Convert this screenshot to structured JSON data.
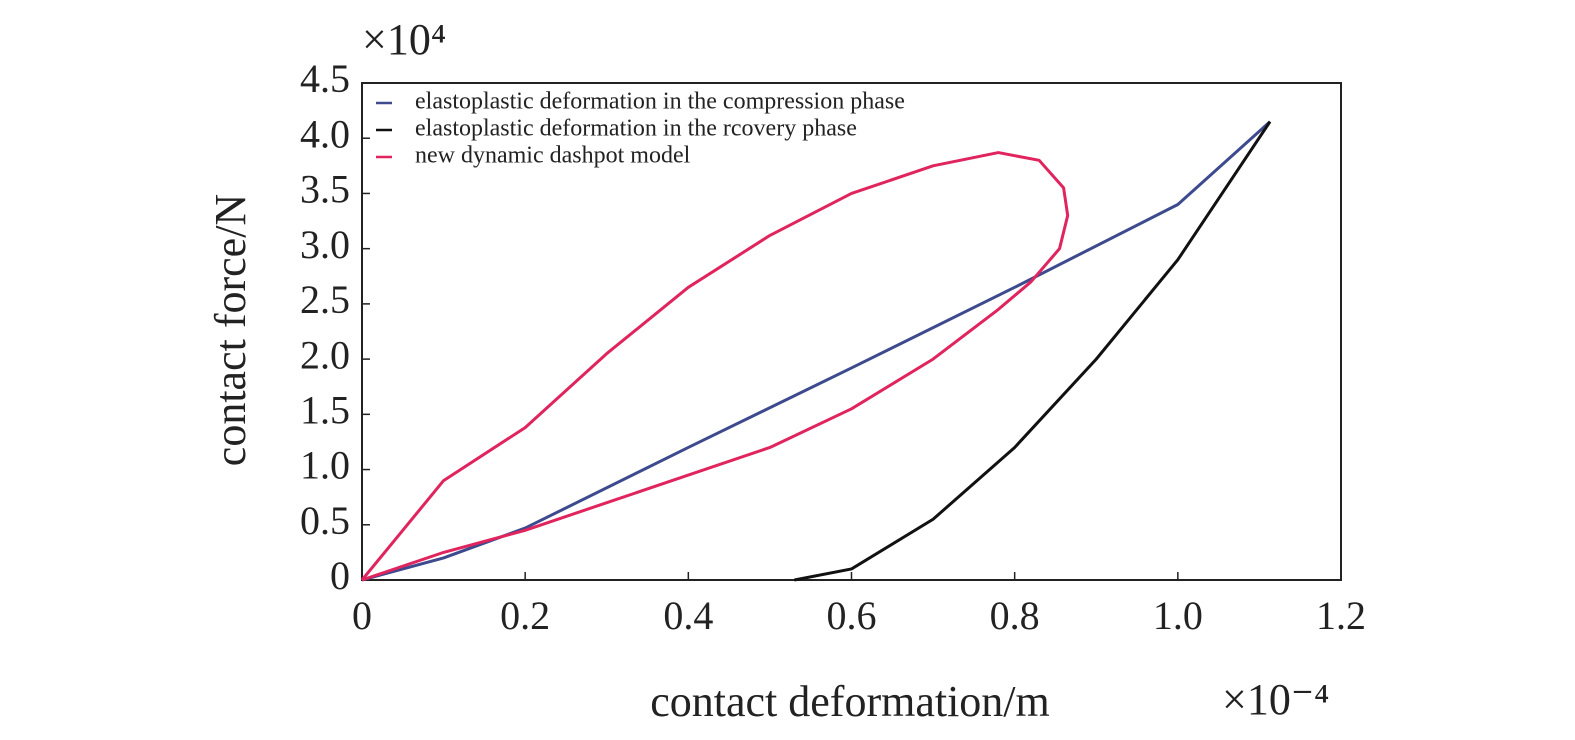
{
  "chart_data": {
    "type": "line",
    "xlabel": "contact deformation/m",
    "ylabel": "contact force/N",
    "x_multiplier": "×10⁻⁴",
    "y_multiplier": "×10⁴",
    "xlim": [
      0,
      1.2
    ],
    "ylim": [
      0,
      4.5
    ],
    "xticks": [
      0,
      0.2,
      0.4,
      0.6,
      0.8,
      {
        "value": 1,
        "label": "1.0"
      },
      1.2
    ],
    "yticks": [
      0,
      0.5,
      {
        "value": 1,
        "label": "1.0"
      },
      1.5,
      {
        "value": 2,
        "label": "2.0"
      },
      2.5,
      {
        "value": 3,
        "label": "3.0"
      },
      3.5,
      {
        "value": 4,
        "label": "4.0"
      },
      4.5
    ],
    "legend": "upper left",
    "series": [
      {
        "name": "elastoplastic deformation in the compression phase",
        "color": "#3d4a8e",
        "x": [
          0,
          0.1,
          0.2,
          0.4,
          0.6,
          0.8,
          1.0,
          1.113
        ],
        "values": [
          0,
          0.2,
          0.47,
          1.2,
          1.92,
          2.65,
          3.4,
          4.15
        ]
      },
      {
        "name": "elastoplastic deformation in the rcovery phase",
        "color": "#111111",
        "x": [
          0.53,
          0.6,
          0.7,
          0.8,
          0.9,
          1.0,
          1.113
        ],
        "values": [
          0,
          0.1,
          0.55,
          1.2,
          2.0,
          2.9,
          4.15
        ]
      },
      {
        "name": "new dynamic dashpot model",
        "color": "#e0245e",
        "x": [
          0,
          0.05,
          0.1,
          0.2,
          0.3,
          0.4,
          0.5,
          0.6,
          0.7,
          0.78,
          0.83,
          0.86,
          0.865,
          0.855,
          0.82,
          0.78,
          0.7,
          0.6,
          0.5,
          0.4,
          0.3,
          0.2,
          0.1,
          0
        ],
        "values": [
          0,
          0.45,
          0.9,
          1.38,
          2.05,
          2.65,
          3.12,
          3.5,
          3.75,
          3.87,
          3.8,
          3.55,
          3.3,
          3.0,
          2.7,
          2.45,
          2.0,
          1.55,
          1.2,
          0.95,
          0.7,
          0.45,
          0.25,
          0
        ]
      }
    ]
  }
}
